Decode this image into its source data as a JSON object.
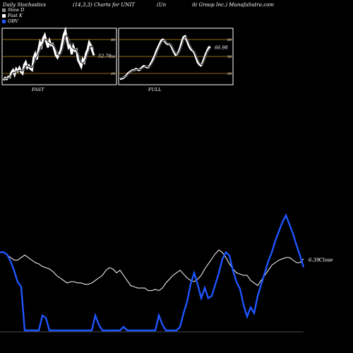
{
  "header": {
    "left": "Daily Stochastics",
    "mid": "(14,3,3) Charts for UNIT",
    "right_a": "(Un",
    "right_b": "iti  Group Inc.) MunafaSutra.com"
  },
  "legend": [
    {
      "label": "Slow  D",
      "color": "#888888"
    },
    {
      "label": "Fast K",
      "color": "#ffffff"
    },
    {
      "label": "OBV",
      "color": "#1f55ff"
    }
  ],
  "colors": {
    "band": "#c88a1e",
    "price": "#ffffff",
    "obv": "#1f55ff",
    "frame": "#ffffff"
  },
  "chart_data": [
    {
      "type": "line",
      "title": "FAST",
      "ylim": [
        0,
        100
      ],
      "bands": [
        20,
        50,
        80
      ],
      "band_labels": [
        "20",
        "50",
        "80"
      ],
      "value_label": "52.78",
      "series": [
        {
          "values": [
            8,
            12,
            10,
            14,
            13,
            22,
            26,
            18,
            28,
            24,
            30,
            23,
            20,
            35,
            40,
            30,
            34,
            28,
            26,
            48,
            55,
            45,
            62,
            75,
            68,
            82,
            88,
            76,
            66,
            78,
            70,
            72,
            62,
            52,
            48,
            55,
            60,
            74,
            88,
            96,
            80,
            66,
            70,
            54,
            68,
            60,
            62,
            44,
            38,
            32,
            45,
            40,
            56,
            62,
            75,
            70,
            60,
            52
          ]
        },
        {
          "values": [
            10,
            11,
            11,
            12,
            13,
            17,
            22,
            21,
            24,
            24,
            26,
            25,
            24,
            28,
            32,
            34,
            32,
            31,
            30,
            36,
            44,
            50,
            55,
            62,
            68,
            73,
            80,
            80,
            76,
            74,
            72,
            72,
            68,
            62,
            56,
            52,
            54,
            62,
            72,
            84,
            88,
            82,
            74,
            66,
            64,
            62,
            62,
            56,
            48,
            40,
            38,
            40,
            46,
            54,
            62,
            68,
            68,
            62
          ]
        }
      ]
    },
    {
      "type": "line",
      "title": "FULL",
      "ylim": [
        0,
        100
      ],
      "bands": [
        20,
        50,
        80
      ],
      "band_labels": [
        "20",
        "50",
        "80"
      ],
      "value_label": "66.98",
      "series": [
        {
          "values": [
            10,
            11,
            12,
            14,
            16,
            20,
            22,
            24,
            26,
            26,
            28,
            27,
            26,
            28,
            31,
            33,
            32,
            31,
            31,
            35,
            40,
            46,
            52,
            60,
            66,
            72,
            78,
            80,
            78,
            74,
            72,
            72,
            70,
            64,
            58,
            53,
            54,
            58,
            66,
            76,
            84,
            86,
            80,
            72,
            66,
            62,
            60,
            56,
            48,
            40,
            36,
            34,
            38,
            46,
            54,
            60,
            66,
            67
          ]
        },
        {
          "values": [
            12,
            12,
            13,
            14,
            15,
            18,
            21,
            23,
            25,
            26,
            27,
            27,
            27,
            27,
            29,
            31,
            32,
            32,
            31,
            33,
            37,
            42,
            48,
            55,
            62,
            68,
            74,
            78,
            79,
            76,
            73,
            72,
            71,
            67,
            61,
            56,
            54,
            56,
            62,
            70,
            79,
            84,
            83,
            77,
            70,
            65,
            61,
            58,
            52,
            45,
            39,
            36,
            36,
            42,
            50,
            57,
            62,
            65
          ]
        }
      ]
    },
    {
      "type": "line",
      "value_label": "6.39",
      "value_label_suffix": "Close",
      "series": [
        {
          "name": "Close",
          "values": [
            68,
            68,
            66,
            64,
            62,
            62,
            64,
            66,
            64,
            62,
            60,
            59,
            57,
            56,
            55,
            53,
            50,
            48,
            46,
            44,
            45,
            45,
            44,
            44,
            43,
            43,
            44,
            46,
            48,
            50,
            54,
            56,
            55,
            52,
            54,
            50,
            46,
            42,
            41,
            40,
            40,
            40,
            38,
            38,
            39,
            38,
            40,
            44,
            47,
            50,
            52,
            54,
            51,
            48,
            46,
            45,
            47,
            50,
            55,
            59,
            63,
            67,
            70,
            68,
            64,
            59,
            55,
            52,
            51,
            50,
            50,
            46,
            44,
            42,
            46,
            50,
            54,
            58,
            60,
            62,
            63,
            64,
            64,
            62,
            60,
            60,
            63
          ]
        },
        {
          "name": "OBV",
          "values": [
            68,
            68,
            66,
            60,
            52,
            42,
            38,
            0,
            0,
            0,
            0,
            0,
            13,
            11,
            0,
            0,
            0,
            0,
            0,
            0,
            0,
            0,
            0,
            0,
            0,
            0,
            0,
            13,
            5,
            0,
            0,
            0,
            0,
            0,
            0,
            3,
            0,
            0,
            0,
            0,
            0,
            0,
            0,
            0,
            0,
            13,
            5,
            0,
            0,
            0,
            0,
            3,
            15,
            25,
            40,
            50,
            40,
            28,
            37,
            28,
            30,
            40,
            50,
            62,
            68,
            65,
            52,
            42,
            36,
            22,
            12,
            20,
            15,
            30,
            40,
            50,
            60,
            68,
            78,
            86,
            94,
            100,
            92,
            84,
            74,
            65,
            55
          ]
        }
      ]
    }
  ]
}
